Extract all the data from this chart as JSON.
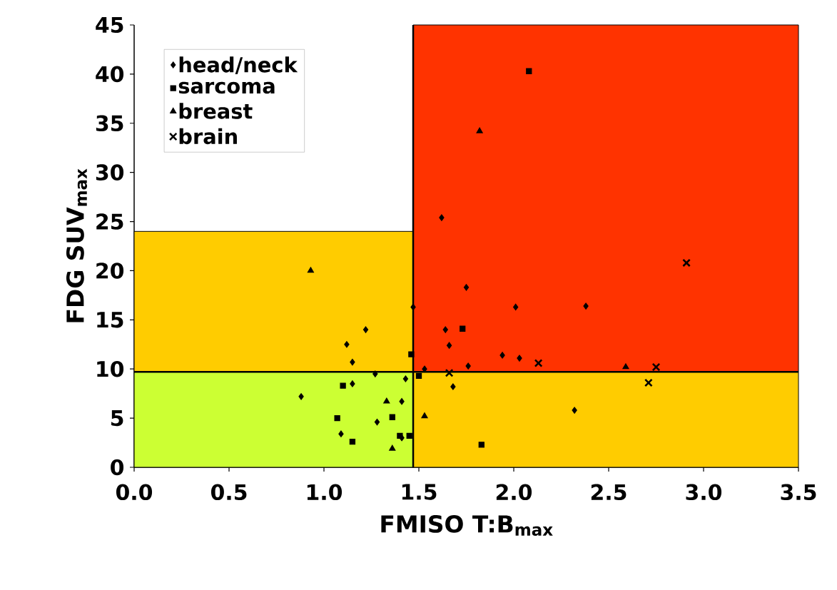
{
  "chart_data": {
    "type": "scatter",
    "xlabel": "FMISO T:B$_{max}$",
    "ylabel": "FDG SUV$_{max}$",
    "xlim": [
      0,
      3.5
    ],
    "ylim": [
      0,
      45
    ],
    "xticks": [
      {
        "value": 0,
        "label": "0.0"
      },
      {
        "value": 0.5,
        "label": "0.5"
      },
      {
        "value": 1,
        "label": "1.0"
      },
      {
        "value": 1.5,
        "label": "1.5"
      },
      {
        "value": 2,
        "label": "2.0"
      },
      {
        "value": 2.5,
        "label": "2.5"
      },
      {
        "value": 3,
        "label": "3.0"
      },
      {
        "value": 3.5,
        "label": "3.5"
      }
    ],
    "yticks": [
      0,
      5,
      10,
      15,
      20,
      25,
      30,
      35,
      40,
      45
    ],
    "grid": false,
    "legend": "top left",
    "bands": [
      {
        "axis": "y",
        "from": 9.7,
        "to": 24,
        "color": "#ffcc00"
      },
      {
        "axis": "y",
        "from": 0,
        "to": 9.7,
        "color": "#ccff33"
      },
      {
        "axis": "y",
        "from": 9.7,
        "to": 45,
        "color": "#ff3300"
      },
      {
        "axis": "y",
        "from": 0,
        "to": 9.7,
        "color": "#ffcc00"
      }
    ],
    "ref_lines": [
      {
        "axis": "x",
        "value": 1.47,
        "color": "#000000"
      },
      {
        "axis": "y",
        "value": 9.7,
        "color": "#000000"
      }
    ],
    "series": [
      {
        "name": "head/neck",
        "color": "#000000",
        "marker": "diamond",
        "x": [
          0.88,
          1.12,
          1.15,
          1.22,
          1.27,
          1.15,
          1.43,
          1.41,
          1.28,
          1.09,
          1.41,
          1.47,
          1.53,
          1.62,
          1.75,
          2.01,
          2.38,
          1.64,
          1.66,
          1.94,
          2.03,
          1.76,
          1.68,
          2.32
        ],
        "values": [
          7.2,
          12.5,
          10.7,
          14.0,
          9.5,
          8.5,
          9.0,
          6.7,
          4.6,
          3.4,
          3.0,
          16.3,
          10.0,
          25.4,
          18.3,
          16.3,
          16.4,
          14.0,
          12.4,
          11.4,
          11.1,
          10.3,
          8.2,
          5.8
        ]
      },
      {
        "name": "sarcoma",
        "color": "#000000",
        "marker": "square",
        "x": [
          2.08,
          1.73,
          1.83,
          1.1,
          1.07,
          1.15,
          1.36,
          1.4,
          1.45,
          1.46,
          1.5
        ],
        "values": [
          40.3,
          14.1,
          2.3,
          8.3,
          5.0,
          2.6,
          5.1,
          3.2,
          3.2,
          11.5,
          9.3
        ]
      },
      {
        "name": "breast",
        "color": "#000000",
        "marker": "triangle",
        "x": [
          0.93,
          1.82,
          2.59,
          1.33,
          1.36,
          1.53
        ],
        "values": [
          20.0,
          34.2,
          10.2,
          6.7,
          1.9,
          5.2
        ]
      },
      {
        "name": "brain",
        "color": "#000000",
        "marker": "cross",
        "x": [
          2.91,
          2.13,
          2.75,
          2.71,
          1.66
        ],
        "values": [
          20.8,
          10.6,
          10.2,
          8.6,
          9.6
        ]
      }
    ]
  }
}
